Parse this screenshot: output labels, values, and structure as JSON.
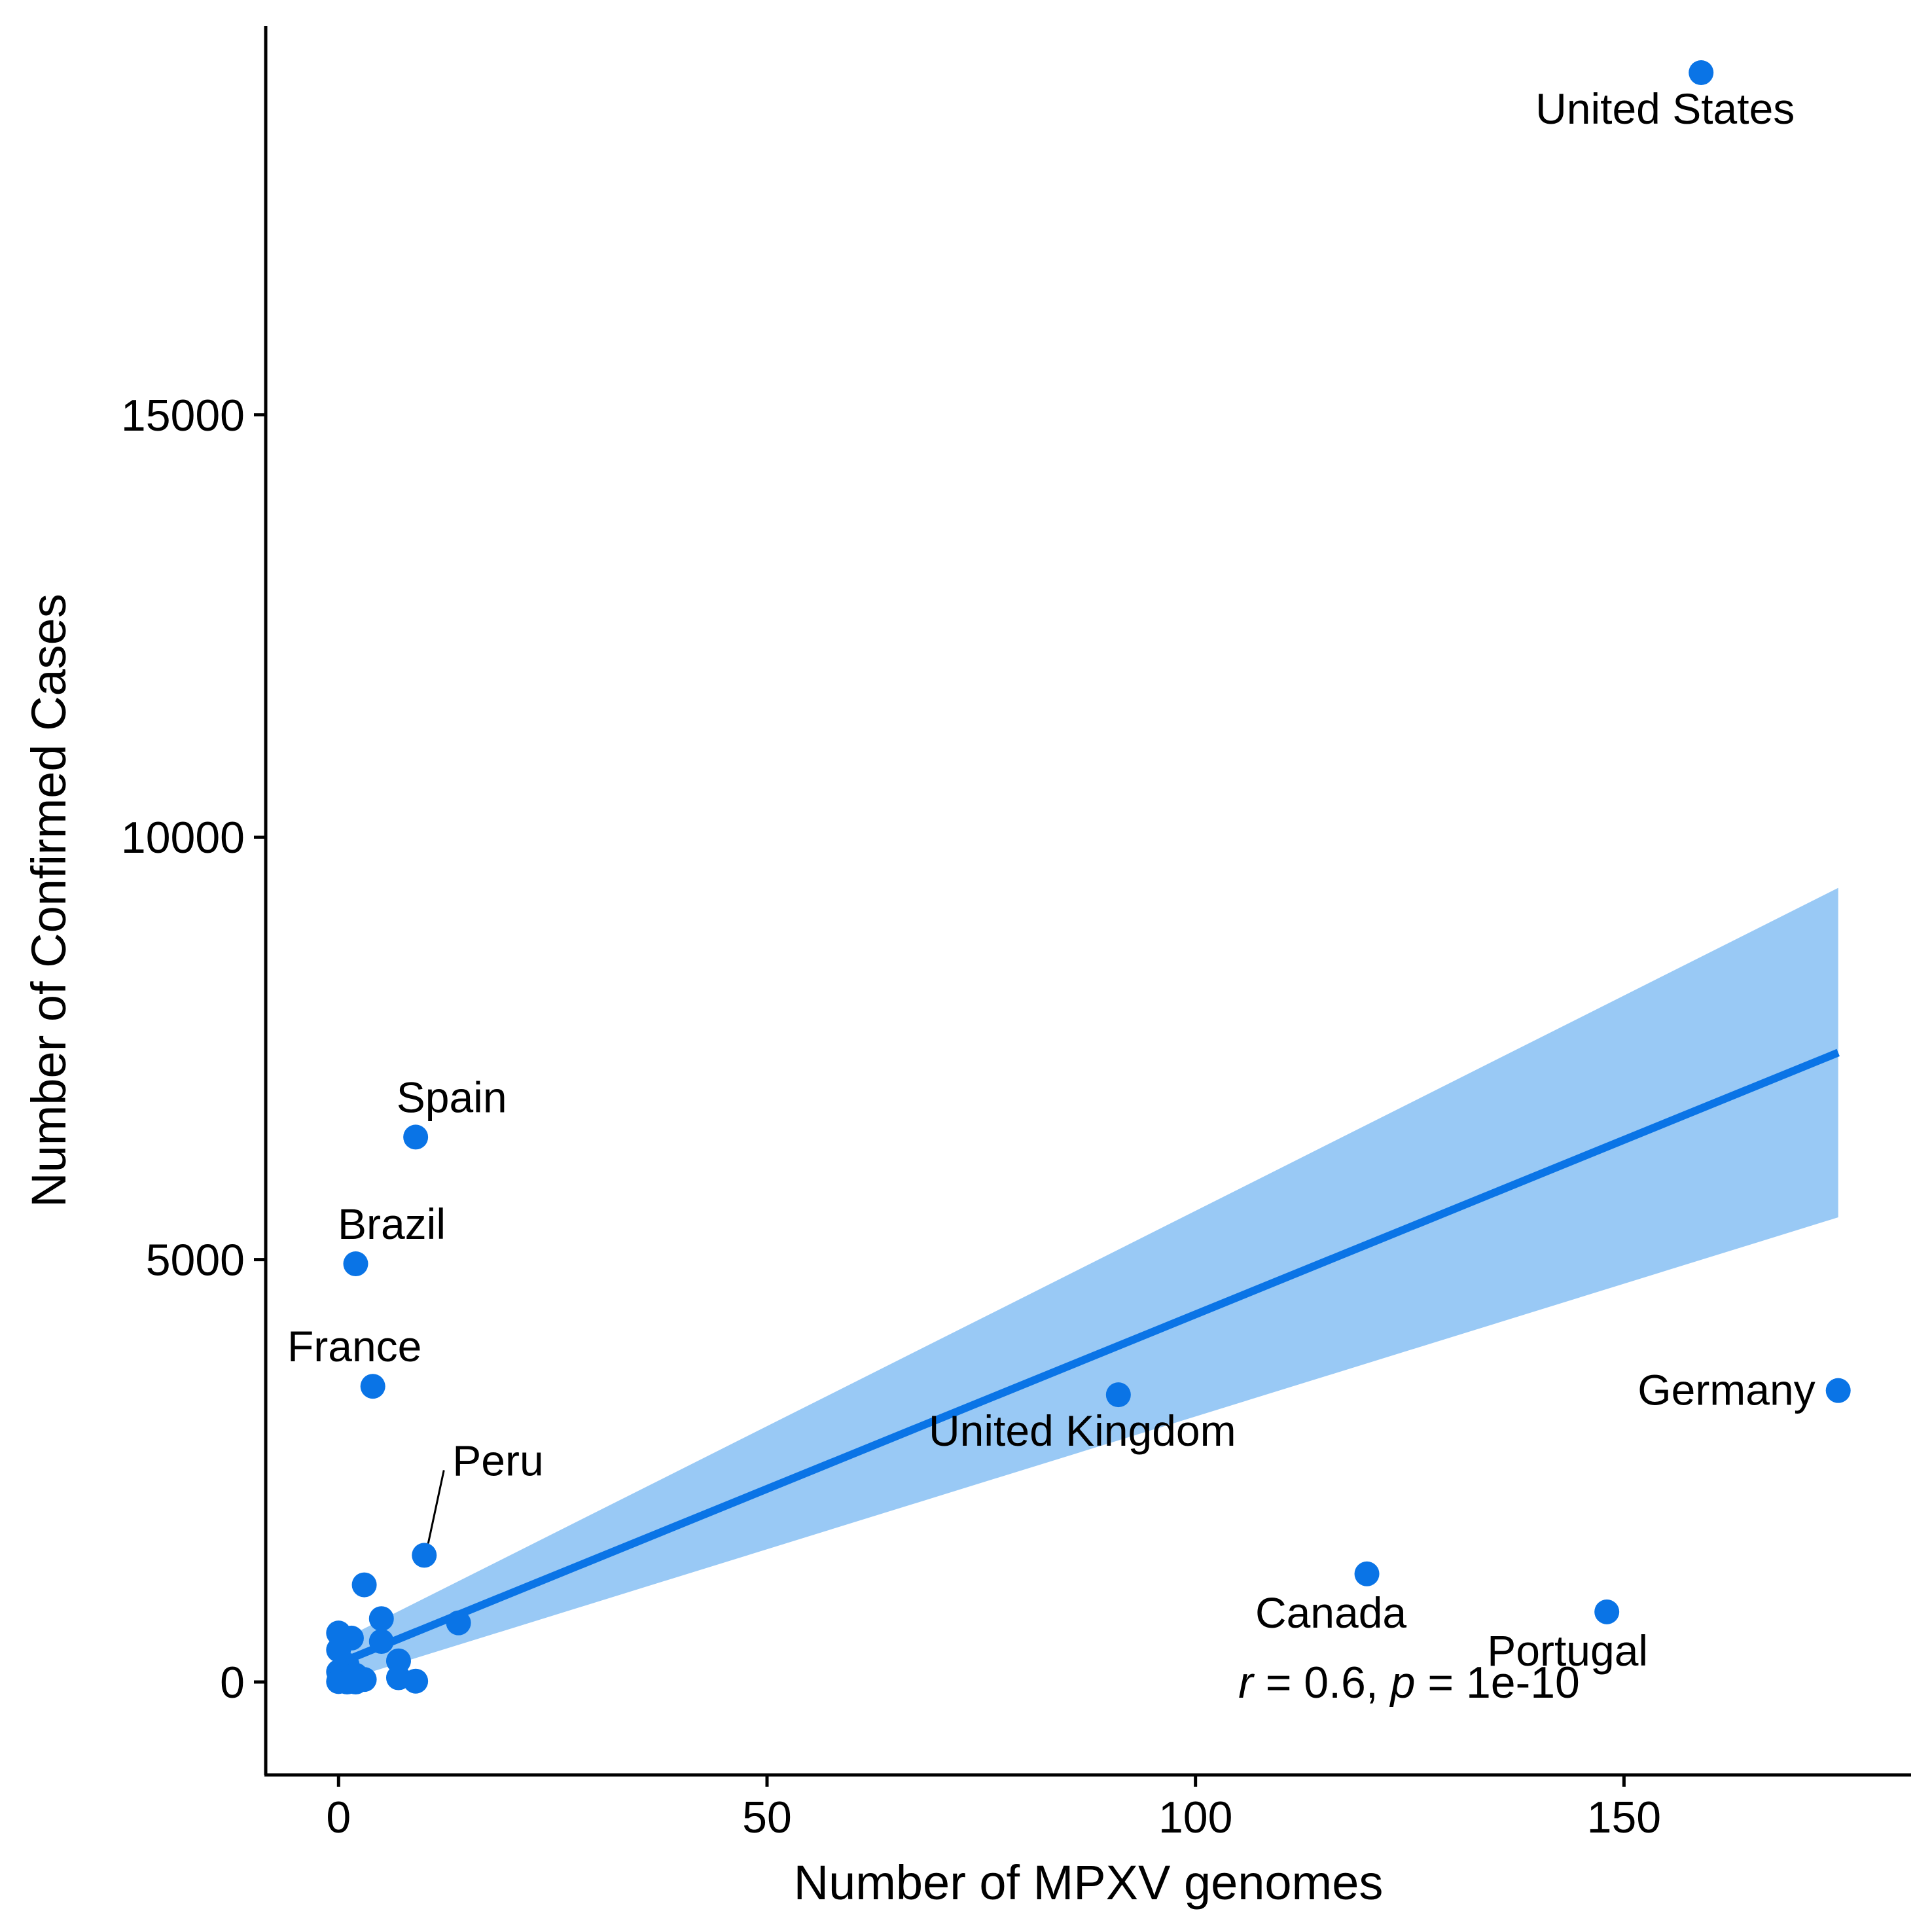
{
  "chart_data": {
    "type": "scatter",
    "title": "",
    "xlabel": "Number of MPXV genomes",
    "ylabel": "Number of Confirmed Cases",
    "xlim": [
      -8.5,
      183.5
    ],
    "ylim": [
      -1100,
      19600
    ],
    "xticks": [
      0,
      50,
      100,
      150
    ],
    "yticks": [
      0,
      5000,
      10000,
      15000
    ],
    "grid": false,
    "legend": "none",
    "colors": {
      "points": "#0A74E6",
      "line": "#0A74E6",
      "band": "#99C9F5",
      "axis": "#000000"
    },
    "points": [
      {
        "x": 159,
        "y": 19050,
        "label": "United States"
      },
      {
        "x": 9,
        "y": 6450,
        "label": "Spain"
      },
      {
        "x": 2,
        "y": 4950,
        "label": "Brazil"
      },
      {
        "x": 4,
        "y": 3500,
        "label": "France"
      },
      {
        "x": 10,
        "y": 1500,
        "label": "Peru"
      },
      {
        "x": 91,
        "y": 3400,
        "label": "United Kingdom"
      },
      {
        "x": 175,
        "y": 3450,
        "label": "Germany"
      },
      {
        "x": 120,
        "y": 1280,
        "label": "Canada"
      },
      {
        "x": 148,
        "y": 830,
        "label": "Portugal"
      },
      {
        "x": 3,
        "y": 1150
      },
      {
        "x": 5,
        "y": 750
      },
      {
        "x": 14,
        "y": 700
      },
      {
        "x": 0,
        "y": 580
      },
      {
        "x": 1.5,
        "y": 520
      },
      {
        "x": 5,
        "y": 480
      },
      {
        "x": 0,
        "y": 380
      },
      {
        "x": 7,
        "y": 250
      },
      {
        "x": 1,
        "y": 200
      },
      {
        "x": 0,
        "y": 120
      },
      {
        "x": 2,
        "y": 80
      },
      {
        "x": 7,
        "y": 50
      },
      {
        "x": 3,
        "y": 30
      },
      {
        "x": 9,
        "y": 10
      },
      {
        "x": 0,
        "y": 5
      },
      {
        "x": 1,
        "y": 0
      },
      {
        "x": 2,
        "y": 0
      }
    ],
    "regression": {
      "x": [
        0,
        175
      ],
      "fit": [
        220,
        7450
      ],
      "lower": [
        0,
        5500
      ],
      "upper": [
        480,
        9400
      ]
    },
    "annotation": {
      "r": "0.6",
      "p": "1e-10",
      "x": 105,
      "y": 0
    }
  }
}
